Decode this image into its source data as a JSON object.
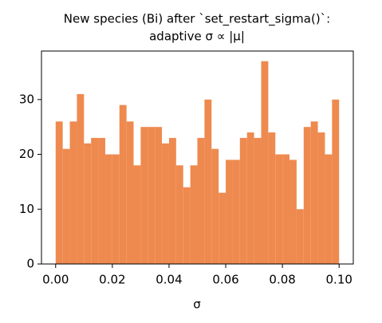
{
  "chart_data": {
    "type": "histogram",
    "title": [
      "New species (Bi) after `set_restart_sigma()`:",
      "adaptive σ ∝ |μ|"
    ],
    "xlabel": "σ",
    "color": "#ee8a4f",
    "bins": [
      0,
      0.0025,
      0.005,
      0.0075,
      0.01,
      0.0125,
      0.015,
      0.0175,
      0.02,
      0.0225,
      0.025,
      0.0275,
      0.03,
      0.0325,
      0.035,
      0.0375,
      0.04,
      0.0425,
      0.045,
      0.0475,
      0.05,
      0.0525,
      0.055,
      0.0575,
      0.06,
      0.0625,
      0.065,
      0.0675,
      0.07,
      0.0725,
      0.075,
      0.0775,
      0.08,
      0.0825,
      0.085,
      0.0875,
      0.09,
      0.0925,
      0.095,
      0.0975,
      0.1
    ],
    "values": [
      26,
      21,
      26,
      31,
      22,
      23,
      23,
      20,
      20,
      29,
      26,
      18,
      25,
      25,
      25,
      22,
      23,
      18,
      14,
      18,
      23,
      30,
      21,
      13,
      19,
      19,
      23,
      24,
      23,
      37,
      24,
      20,
      20,
      19,
      10,
      25,
      26,
      24,
      20,
      30
    ],
    "xlim": [
      -0.005,
      0.105
    ],
    "ylim": [
      0,
      38.85
    ],
    "xticks": [
      {
        "value": 0,
        "label": "0.00"
      },
      {
        "value": 0.02,
        "label": "0.02"
      },
      {
        "value": 0.04,
        "label": "0.04"
      },
      {
        "value": 0.06,
        "label": "0.06"
      },
      {
        "value": 0.08,
        "label": "0.08"
      },
      {
        "value": 0.1,
        "label": "0.10"
      }
    ],
    "yticks": [
      0,
      10,
      20,
      30
    ]
  }
}
